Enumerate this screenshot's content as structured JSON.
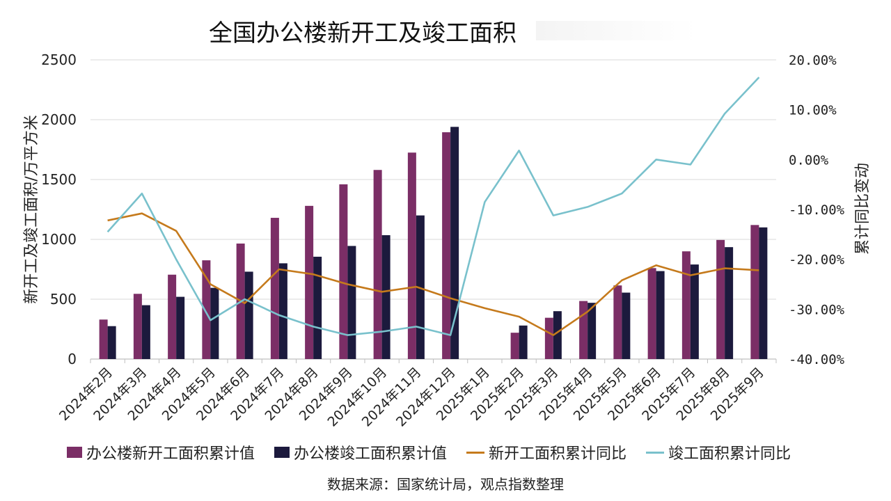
{
  "title": "全国办公楼新开工及竣工面积",
  "source": "数据来源：国家统计局，观点指数整理",
  "colors": {
    "new_start_bar": "#7B2E66",
    "completion_bar": "#1C1A3D",
    "new_start_line": "#C57A1C",
    "completion_line": "#79C1CC",
    "grid": "#D9D9D9",
    "axis": "#BFBFBF"
  },
  "legend": {
    "new_start_cum": "办公楼新开工面积累计值",
    "completion_cum": "办公楼竣工面积累计值",
    "new_start_yoy": "新开工面积累计同比",
    "completion_yoy": "竣工面积累计同比"
  },
  "chart_data": {
    "type": "bar+line",
    "title": "全国办公楼新开工及竣工面积",
    "categories": [
      "2024年2月",
      "2024年3月",
      "2024年4月",
      "2024年5月",
      "2024年6月",
      "2024年7月",
      "2024年8月",
      "2024年9月",
      "2024年10月",
      "2024年11月",
      "2024年12月",
      "2025年1月",
      "2025年2月",
      "2025年3月",
      "2025年4月",
      "2025年5月",
      "2025年6月",
      "2025年7月",
      "2025年8月",
      "2025年9月"
    ],
    "ylabel_left": "新开工及竣工面积/万平方米",
    "ylabel_right": "累计同比变动",
    "ylim_left": [
      0,
      2500
    ],
    "yticks_left": [
      "0",
      "500",
      "1000",
      "1500",
      "2000",
      "2500"
    ],
    "ylim_right": [
      -40,
      20
    ],
    "yticks_right": [
      "-40.00%",
      "-30.00%",
      "-20.00%",
      "-10.00%",
      "0.00%",
      "10.00%",
      "20.00%"
    ],
    "series": [
      {
        "name": "办公楼新开工面积累计值",
        "kind": "bar",
        "axis": "left",
        "values": [
          330,
          545,
          705,
          825,
          965,
          1180,
          1280,
          1460,
          1580,
          1725,
          1895,
          null,
          220,
          345,
          485,
          615,
          760,
          900,
          995,
          1120
        ]
      },
      {
        "name": "办公楼竣工面积累计值",
        "kind": "bar",
        "axis": "left",
        "values": [
          275,
          450,
          520,
          595,
          730,
          800,
          855,
          945,
          1035,
          1200,
          1940,
          null,
          280,
          400,
          470,
          555,
          735,
          790,
          935,
          1100
        ]
      },
      {
        "name": "新开工面积累计同比",
        "kind": "line",
        "axis": "right",
        "values": [
          -12.2,
          -10.8,
          -14.3,
          -25.0,
          -28.8,
          -22.0,
          -23.0,
          -25.0,
          -26.5,
          -25.5,
          -27.8,
          -29.8,
          -31.5,
          -35.2,
          -30.5,
          -24.2,
          -21.2,
          -23.2,
          -21.8,
          -22.2
        ]
      },
      {
        "name": "竣工面积累计同比",
        "kind": "line",
        "axis": "right",
        "values": [
          -14.5,
          -6.8,
          -20.0,
          -32.2,
          -28.0,
          -31.2,
          -33.5,
          -35.2,
          -34.5,
          -33.5,
          -35.2,
          -8.5,
          1.8,
          -11.2,
          -9.5,
          -6.8,
          0.0,
          -1.0,
          9.2,
          16.5
        ]
      }
    ]
  }
}
